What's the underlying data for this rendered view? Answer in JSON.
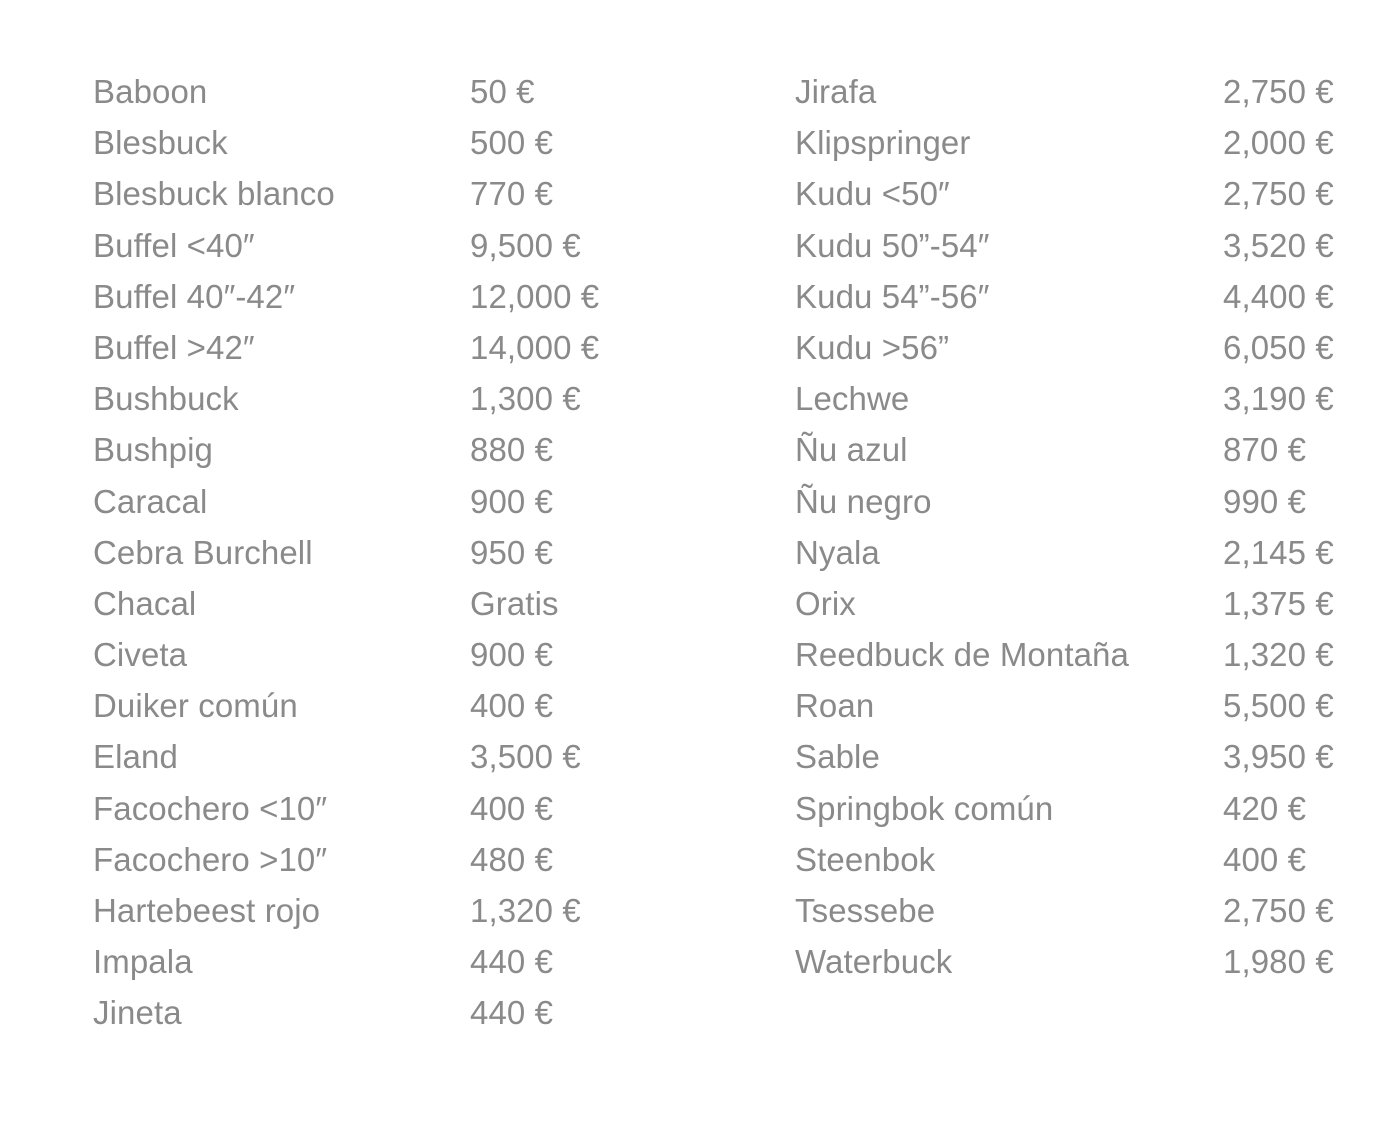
{
  "page": {
    "background_color": "#ffffff",
    "text_color": "#8a8a8a",
    "free_label": "Gratis",
    "currency_symbol": "€"
  },
  "price_list": {
    "columns": [
      {
        "rows": [
          {
            "name": "Baboon",
            "price": "50 €"
          },
          {
            "name": "Blesbuck",
            "price": "500 €"
          },
          {
            "name": "Blesbuck blanco",
            "price": "770 €"
          },
          {
            "name": "Buffel <40″",
            "price": "9,500 €"
          },
          {
            "name": "Buffel 40″-42″",
            "price": "12,000 €"
          },
          {
            "name": "Buffel >42″",
            "price": "14,000 €"
          },
          {
            "name": "Bushbuck",
            "price": "1,300 €"
          },
          {
            "name": "Bushpig",
            "price": "880 €"
          },
          {
            "name": "Caracal",
            "price": "900 €"
          },
          {
            "name": "Cebra Burchell",
            "price": "950 €"
          },
          {
            "name": "Chacal",
            "price": "Gratis"
          },
          {
            "name": "Civeta",
            "price": "900 €"
          },
          {
            "name": "Duiker común",
            "price": "400 €"
          },
          {
            "name": "Eland",
            "price": "3,500 €"
          },
          {
            "name": "Facochero <10″",
            "price": "400 €"
          },
          {
            "name": "Facochero >10″",
            "price": "480 €"
          },
          {
            "name": "Hartebeest rojo",
            "price": "1,320 €"
          },
          {
            "name": "Impala",
            "price": "440 €"
          },
          {
            "name": "Jineta",
            "price": "440 €"
          }
        ]
      },
      {
        "rows": [
          {
            "name": "Jirafa",
            "price": "2,750 €"
          },
          {
            "name": "Klipspringer",
            "price": "2,000 €"
          },
          {
            "name": "Kudu <50″",
            "price": "2,750 €"
          },
          {
            "name": "Kudu 50”-54″",
            "price": "3,520 €"
          },
          {
            "name": "Kudu 54”-56″",
            "price": "4,400 €"
          },
          {
            "name": "Kudu >56”",
            "price": "6,050 €"
          },
          {
            "name": "Lechwe",
            "price": "3,190 €"
          },
          {
            "name": "Ñu azul",
            "price": "870 €"
          },
          {
            "name": "Ñu negro",
            "price": "990 €"
          },
          {
            "name": "Nyala",
            "price": "2,145 €"
          },
          {
            "name": "Orix",
            "price": "1,375 €"
          },
          {
            "name": "Reedbuck de Montaña",
            "price": "1,320 €"
          },
          {
            "name": "Roan",
            "price": "5,500 €"
          },
          {
            "name": "Sable",
            "price": "3,950 €"
          },
          {
            "name": "Springbok común",
            "price": "420 €"
          },
          {
            "name": "Steenbok",
            "price": "400 €"
          },
          {
            "name": "Tsessebe",
            "price": "2,750 €"
          },
          {
            "name": "Waterbuck",
            "price": "1,980 €"
          }
        ]
      }
    ]
  }
}
